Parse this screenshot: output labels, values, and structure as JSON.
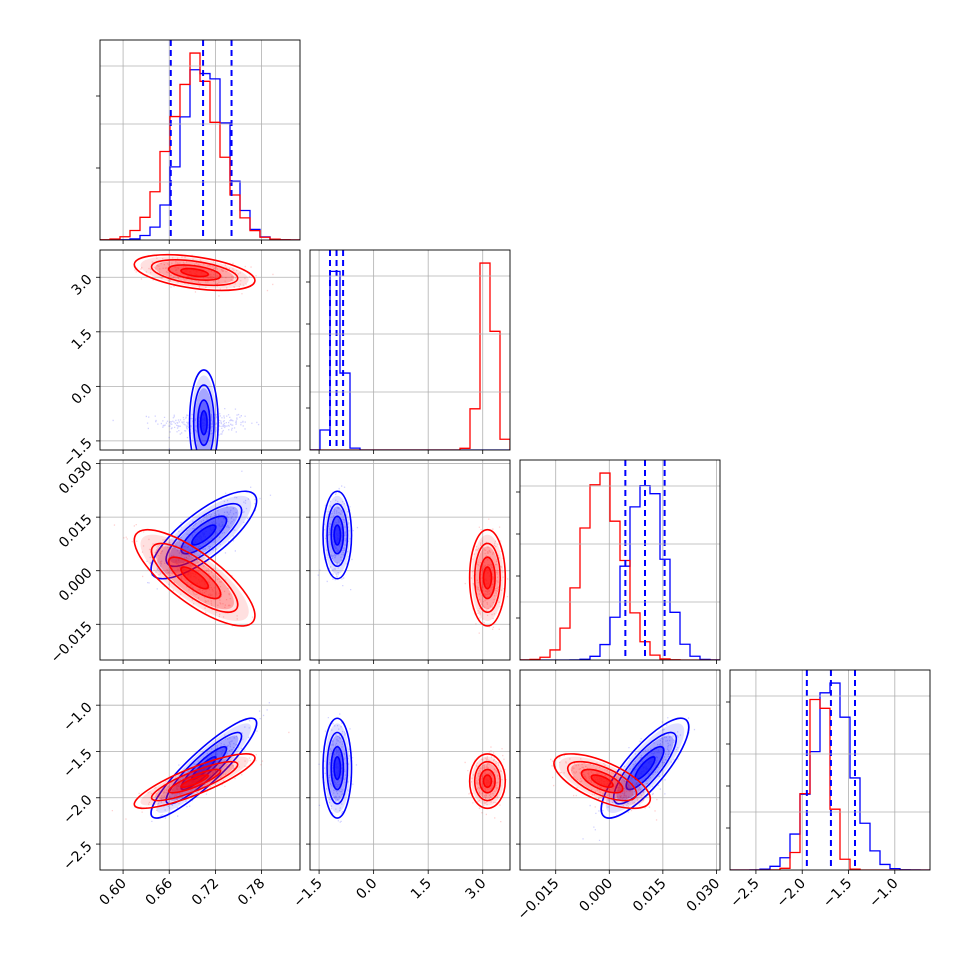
{
  "chart_data": {
    "type": "scatter",
    "plot_kind": "corner-plot",
    "grid": true,
    "n_params": 4,
    "series": [
      {
        "color": "#0000ff",
        "mean": [
          0.705,
          -1.0,
          0.01,
          -1.68
        ],
        "std": [
          0.028,
          0.16,
          0.005,
          0.22
        ],
        "corr": {
          "1-0": 0.0,
          "2-0": 0.78,
          "2-1": 0.0,
          "3-0": 0.9,
          "3-1": 0.0,
          "3-2": 0.82
        }
      },
      {
        "color": "#ff0000",
        "mean": [
          0.693,
          3.13,
          -0.002,
          -1.82
        ],
        "std": [
          0.032,
          0.2,
          0.0055,
          0.12
        ],
        "corr": {
          "1-0": -0.45,
          "2-0": -0.78,
          "2-1": 0.0,
          "3-0": 0.85,
          "3-1": 0.0,
          "3-2": -0.65
        }
      }
    ],
    "quantile_lines": [
      {
        "color": "#0000ff",
        "values": [
          0.662,
          0.704,
          0.741
        ]
      },
      {
        "color": "#0000ff",
        "values": [
          -1.2,
          -1.02,
          -0.84
        ]
      },
      {
        "color": "#0000ff",
        "values": [
          0.0045,
          0.01,
          0.0155
        ]
      },
      {
        "color": "#0000ff",
        "values": [
          -1.95,
          -1.69,
          -1.43
        ]
      }
    ],
    "params": [
      {
        "range": [
          0.57,
          0.83
        ],
        "ticks": [
          "0.60",
          "0.66",
          "0.72",
          "0.78"
        ],
        "tick_values": [
          0.6,
          0.66,
          0.72,
          0.78
        ]
      },
      {
        "range": [
          -1.75,
          3.75
        ],
        "ticks": [
          "−1.5",
          "0.0",
          "1.5",
          "3.0"
        ],
        "tick_values": [
          -1.5,
          0.0,
          1.5,
          3.0
        ]
      },
      {
        "range": [
          -0.025,
          0.031
        ],
        "ticks": [
          "−0.015",
          "0.000",
          "0.015",
          "0.030"
        ],
        "tick_values": [
          -0.015,
          0.0,
          0.015,
          0.03
        ]
      },
      {
        "range": [
          -2.78,
          -0.62
        ],
        "ticks": [
          "−2.5",
          "−2.0",
          "−1.5",
          "−1.0"
        ],
        "tick_values": [
          -2.5,
          -2.0,
          -1.5,
          -1.0
        ]
      }
    ]
  }
}
